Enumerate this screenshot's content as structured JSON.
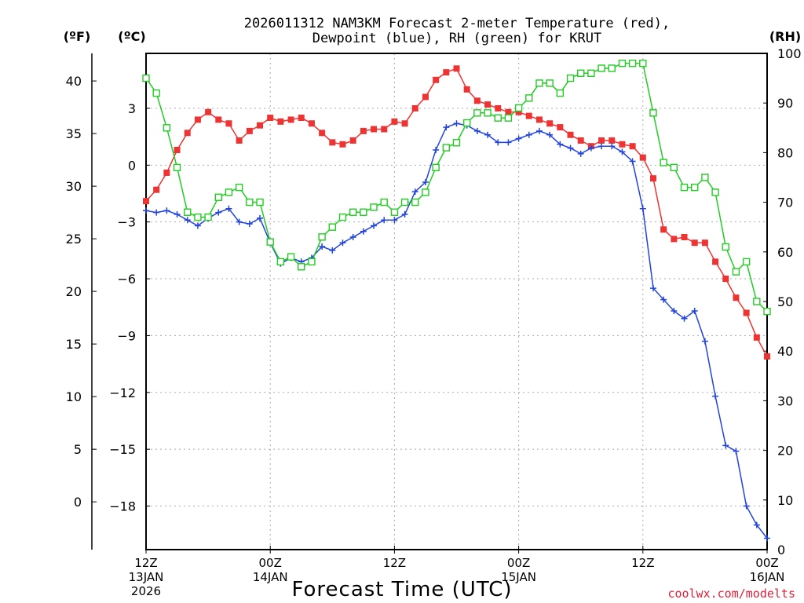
{
  "chart_data": {
    "type": "line",
    "title_line1": "2026011312 NAM3KM Forecast 2-meter Temperature (red),",
    "title_line2": "Dewpoint (blue), RH (green) for KRUT",
    "xlabel": "Forecast Time (UTC)",
    "credit": "coolwx.com/modelts",
    "units": {
      "fahrenheit": "(ºF)",
      "celsius": "(ºC)",
      "rh": "(RH)"
    },
    "x_hours": [
      0,
      1,
      2,
      3,
      4,
      5,
      6,
      7,
      8,
      9,
      10,
      11,
      12,
      13,
      14,
      15,
      16,
      17,
      18,
      19,
      20,
      21,
      22,
      23,
      24,
      25,
      26,
      27,
      28,
      29,
      30,
      31,
      32,
      33,
      34,
      35,
      36,
      37,
      38,
      39,
      40,
      41,
      42,
      43,
      44,
      45,
      46,
      47,
      48,
      49,
      50,
      51,
      52,
      53,
      54,
      55,
      56,
      57,
      58,
      59,
      60
    ],
    "xlim": [
      0,
      60
    ],
    "x_ticks": [
      {
        "hour": 0,
        "label1": "12Z",
        "label2": "13JAN",
        "label3": "2026"
      },
      {
        "hour": 12,
        "label1": "00Z",
        "label2": "14JAN",
        "label3": ""
      },
      {
        "hour": 24,
        "label1": "12Z",
        "label2": "",
        "label3": ""
      },
      {
        "hour": 36,
        "label1": "00Z",
        "label2": "15JAN",
        "label3": ""
      },
      {
        "hour": 48,
        "label1": "12Z",
        "label2": "",
        "label3": ""
      },
      {
        "hour": 60,
        "label1": "00Z",
        "label2": "16JAN",
        "label3": ""
      }
    ],
    "y_celsius": {
      "lim": [
        -20.3,
        5.9
      ],
      "ticks": [
        3,
        0,
        -3,
        -6,
        -9,
        -12,
        -15,
        -18
      ]
    },
    "y_fahrenheit": {
      "ticks": [
        40,
        35,
        30,
        25,
        20,
        15,
        10,
        5,
        0
      ]
    },
    "y_rh": {
      "lim": [
        0,
        100
      ],
      "ticks": [
        100,
        90,
        80,
        70,
        60,
        50,
        40,
        30,
        20,
        10,
        0
      ]
    },
    "series": [
      {
        "name": "Temperature",
        "axis": "celsius",
        "color": "#ee3333",
        "marker": "filled-square",
        "values": [
          -1.9,
          -1.3,
          -0.4,
          0.8,
          1.7,
          2.4,
          2.8,
          2.4,
          2.2,
          1.3,
          1.8,
          2.1,
          2.5,
          2.3,
          2.4,
          2.5,
          2.2,
          1.7,
          1.2,
          1.1,
          1.3,
          1.8,
          1.9,
          1.9,
          2.3,
          2.2,
          3.0,
          3.6,
          4.5,
          4.9,
          5.1,
          4.0,
          3.4,
          3.2,
          3.0,
          2.8,
          2.8,
          2.6,
          2.4,
          2.2,
          2.0,
          1.6,
          1.3,
          1.0,
          1.3,
          1.3,
          1.1,
          1.0,
          0.4,
          -0.7,
          -3.4,
          -3.9,
          -3.8,
          -4.1,
          -4.1,
          -5.1,
          -6.0,
          -7.0,
          -7.8,
          -9.1,
          -10.1
        ]
      },
      {
        "name": "Dewpoint",
        "axis": "celsius",
        "color": "#2244dd",
        "marker": "plus",
        "values": [
          -2.4,
          -2.5,
          -2.4,
          -2.6,
          -2.9,
          -3.2,
          -2.8,
          -2.5,
          -2.3,
          -3.0,
          -3.1,
          -2.8,
          -4.1,
          -5.2,
          -4.9,
          -5.1,
          -4.9,
          -4.3,
          -4.5,
          -4.1,
          -3.8,
          -3.5,
          -3.2,
          -2.9,
          -2.9,
          -2.6,
          -1.4,
          -0.9,
          0.8,
          2.0,
          2.2,
          2.1,
          1.8,
          1.6,
          1.2,
          1.2,
          1.4,
          1.6,
          1.8,
          1.6,
          1.1,
          0.9,
          0.6,
          0.9,
          1.0,
          1.0,
          0.7,
          0.2,
          -2.3,
          -6.5,
          -7.1,
          -7.7,
          -8.1,
          -7.7,
          -9.3,
          -12.2,
          -14.8,
          -15.1,
          -18.0,
          -19.0,
          -19.7
        ]
      },
      {
        "name": "RH",
        "axis": "rh",
        "color": "#22cc22",
        "marker": "open-square",
        "values": [
          95,
          92,
          85,
          77,
          68,
          67,
          67,
          71,
          72,
          73,
          70,
          70,
          62,
          58,
          59,
          57,
          58,
          63,
          65,
          67,
          68,
          68,
          69,
          70,
          68,
          70,
          70,
          72,
          77,
          81,
          82,
          86,
          88,
          88,
          87,
          87,
          89,
          91,
          94,
          94,
          92,
          95,
          96,
          96,
          97,
          97,
          98,
          98,
          98,
          88,
          78,
          77,
          73,
          73,
          75,
          72,
          61,
          56,
          58,
          50,
          48
        ]
      }
    ]
  }
}
